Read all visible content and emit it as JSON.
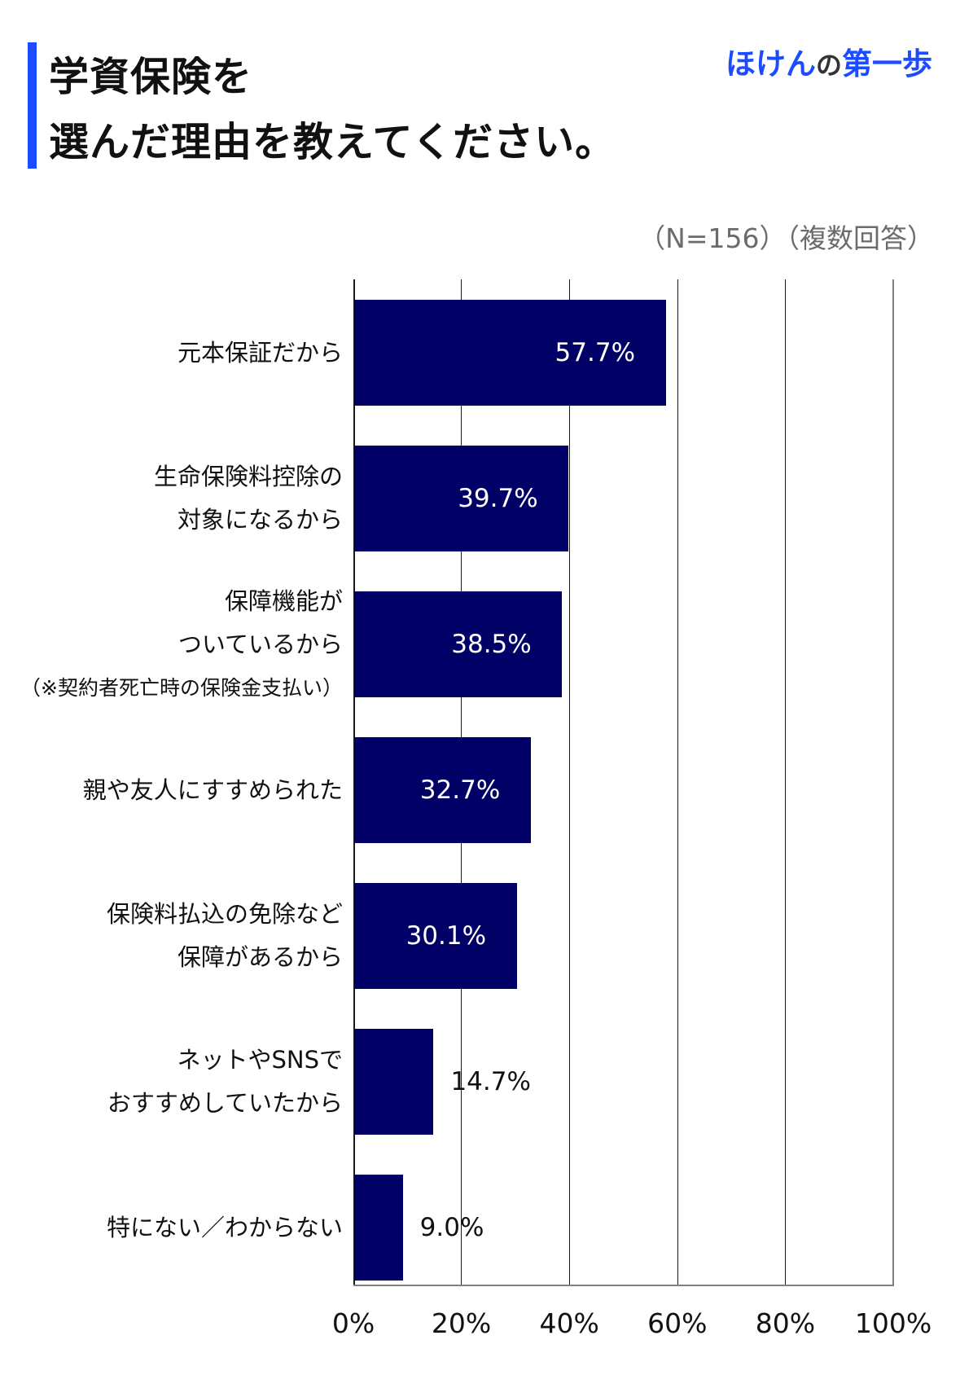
{
  "header": {
    "title_line1": "学資保険を",
    "title_line2": "選んだ理由を教えてください。",
    "brand_part1": "ほけん",
    "brand_part2": "の",
    "brand_part3": "第一歩",
    "note": "（N=156）（複数回答）"
  },
  "colors": {
    "accent": "#1c4cff",
    "bar": "#000066",
    "note_text": "#6b6b6b"
  },
  "categories": [
    {
      "lines": [
        "元本保証だから"
      ],
      "value_label": "57.7%"
    },
    {
      "lines": [
        "生命保険料控除の",
        "対象になるから"
      ],
      "value_label": "39.7%"
    },
    {
      "lines": [
        "保障機能が",
        "ついているから",
        "（※契約者死亡時の保険金支払い）"
      ],
      "value_label": "38.5%"
    },
    {
      "lines": [
        "親や友人にすすめられた"
      ],
      "value_label": "32.7%"
    },
    {
      "lines": [
        "保険料払込の免除など",
        "保障があるから"
      ],
      "value_label": "30.1%"
    },
    {
      "lines": [
        "ネットやSNSで",
        "おすすめしていたから"
      ],
      "value_label": "14.7%"
    },
    {
      "lines": [
        "特にない／わからない"
      ],
      "value_label": "9.0%"
    }
  ],
  "xaxis": {
    "ticks": [
      "0%",
      "20%",
      "40%",
      "60%",
      "80%",
      "100%"
    ]
  },
  "chart_data": {
    "type": "bar",
    "orientation": "horizontal",
    "title": "学資保険を選んだ理由を教えてください。",
    "subtitle": "（N=156）（複数回答）",
    "categories": [
      "元本保証だから",
      "生命保険料控除の対象になるから",
      "保障機能がついているから（※契約者死亡時の保険金支払い）",
      "親や友人にすすめられた",
      "保険料払込の免除など保障があるから",
      "ネットやSNSでおすすめしていたから",
      "特にない／わからない"
    ],
    "values": [
      57.7,
      39.7,
      38.5,
      32.7,
      30.1,
      14.7,
      9.0
    ],
    "xlabel": "",
    "ylabel": "",
    "xlim": [
      0,
      100
    ],
    "xticks": [
      "0%",
      "20%",
      "40%",
      "60%",
      "80%",
      "100%"
    ],
    "grid": true,
    "legend": null,
    "bar_color": "#000066"
  }
}
